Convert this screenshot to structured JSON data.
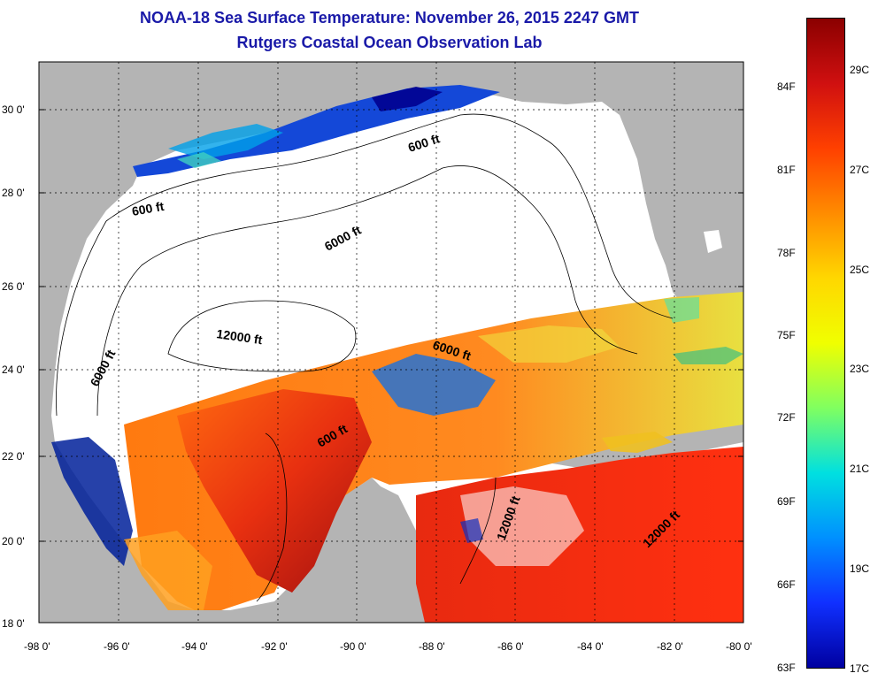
{
  "title": "NOAA-18 Sea Surface Temperature:  November 26, 2015 2247 GMT",
  "subtitle": "Rutgers Coastal Ocean Observation Lab",
  "x_ticks": [
    "-98 0'",
    "-96 0'",
    "-94 0'",
    "-92 0'",
    "-90 0'",
    "-88 0'",
    "-86 0'",
    "-84 0'",
    "-82 0'",
    "-80 0'"
  ],
  "y_ticks": [
    "30 0'",
    "28 0'",
    "26 0'",
    "24 0'",
    "22 0'",
    "20 0'",
    "18 0'"
  ],
  "contour_labels": [
    "600 ft",
    "600 ft",
    "6000 ft",
    "12000 ft",
    "6000 ft",
    "6000 ft",
    "600 ft",
    "12000 ft",
    "12000 ft"
  ],
  "colorbar": {
    "fahrenheit": [
      "84F",
      "81F",
      "78F",
      "75F",
      "72F",
      "69F",
      "66F",
      "63F"
    ],
    "celsius": [
      "29C",
      "27C",
      "25C",
      "23C",
      "21C",
      "19C",
      "17C"
    ],
    "colors": [
      "#8b0000",
      "#d01010",
      "#ff4000",
      "#ff8c00",
      "#ffd700",
      "#f0ff00",
      "#80ff60",
      "#00e0e0",
      "#0090ff",
      "#1030ff",
      "#0000a0"
    ]
  },
  "colors": {
    "land": "#b4b4b4",
    "no_data": "#ffffff",
    "title": "#1a1aa8"
  }
}
